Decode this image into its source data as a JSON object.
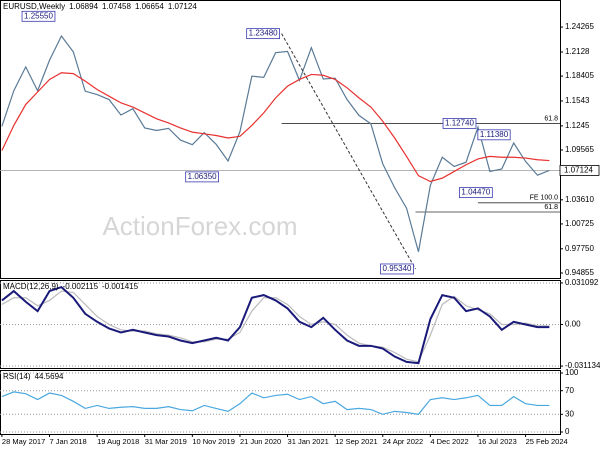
{
  "chart_data": [
    {
      "type": "line",
      "title": "EURUSD,Weekly",
      "ohlc": [
        1.06894,
        1.07458,
        1.06654,
        1.07124
      ],
      "watermark": "ActionForex.com",
      "x": [
        "2017-05-28",
        "2017-07-23",
        "2017-09-17",
        "2017-11-12",
        "2018-01-07",
        "2018-03-04",
        "2018-04-29",
        "2018-06-24",
        "2018-08-19",
        "2018-10-14",
        "2018-12-09",
        "2019-02-03",
        "2019-03-31",
        "2019-05-26",
        "2019-07-21",
        "2019-09-15",
        "2019-11-10",
        "2020-01-05",
        "2020-03-01",
        "2020-04-26",
        "2020-06-21",
        "2020-08-16",
        "2020-10-11",
        "2020-12-06",
        "2021-01-31",
        "2021-03-28",
        "2021-05-23",
        "2021-07-18",
        "2021-09-12",
        "2021-11-07",
        "2022-01-02",
        "2022-02-27",
        "2022-04-24",
        "2022-06-19",
        "2022-08-14",
        "2022-10-09",
        "2022-12-04",
        "2023-01-29",
        "2023-03-26",
        "2023-05-21",
        "2023-07-16",
        "2023-09-10",
        "2023-11-05",
        "2023-12-31",
        "2024-02-25",
        "2024-04-21",
        "2024-06-16"
      ],
      "series": [
        {
          "color": "#5a7a96",
          "values": [
            1.124,
            1.1665,
            1.195,
            1.1665,
            1.203,
            1.232,
            1.213,
            1.166,
            1.162,
            1.156,
            1.1375,
            1.145,
            1.122,
            1.119,
            1.1215,
            1.1075,
            1.102,
            1.1165,
            1.1025,
            1.0825,
            1.1175,
            1.184,
            1.1825,
            1.212,
            1.2135,
            1.179,
            1.218,
            1.1805,
            1.1815,
            1.156,
            1.137,
            1.127,
            1.079,
            1.0505,
            1.026,
            0.974,
            1.0535,
            1.087,
            1.076,
            1.081,
            1.123,
            1.07,
            1.073,
            1.104,
            1.082,
            1.0655,
            1.0712
          ]
        },
        {
          "color": "#e8312f",
          "values": [
            1.095,
            1.125,
            1.15,
            1.165,
            1.18,
            1.188,
            1.187,
            1.178,
            1.168,
            1.16,
            1.152,
            1.147,
            1.14,
            1.133,
            1.128,
            1.122,
            1.117,
            1.115,
            1.113,
            1.11,
            1.112,
            1.125,
            1.14,
            1.158,
            1.172,
            1.18,
            1.186,
            1.185,
            1.18,
            1.17,
            1.158,
            1.147,
            1.13,
            1.11,
            1.088,
            1.065,
            1.058,
            1.062,
            1.07,
            1.078,
            1.085,
            1.088,
            1.087,
            1.087,
            1.086,
            1.084,
            1.083
          ]
        }
      ],
      "xlim": [
        "2017-05-19",
        "2024-08-05"
      ],
      "ylim": [
        0.9426,
        1.275
      ],
      "yticks": [
        1.24265,
        1.2128,
        1.18405,
        1.1543,
        1.1245,
        1.09565,
        {
          "value": 1.0361,
          "label": "1.03610"
        },
        1.00725,
        {
          "value": 0.9775,
          "label": "0.97750"
        },
        0.94855
      ],
      "grid": false,
      "last_price": {
        "value": 1.07124,
        "label": "1.07124"
      },
      "annotations": [
        {
          "text": "1.25550",
          "price": 1.2555,
          "x": "2018-02-11"
        },
        {
          "text": "1.06350",
          "price": 1.0635,
          "x": "2020-03-22"
        },
        {
          "text": "1.23480",
          "price": 1.2348,
          "x": "2021-01-03"
        },
        {
          "text": "0.95340",
          "price": 0.9534,
          "x": "2022-09-25"
        },
        {
          "text": "1.12740",
          "price": 1.1274,
          "x": "2023-07-16"
        },
        {
          "text": "1.04470",
          "price": 1.0447,
          "x": "2023-10-01"
        },
        {
          "text": "1.11380",
          "price": 1.1138,
          "x": "2023-12-24"
        }
      ],
      "levels": [
        {
          "text": "61.8",
          "price": 1.1274,
          "from": "2021-01-03"
        },
        {
          "text": "FE 100.0",
          "price": 1.0325,
          "from": "2023-07-16"
        },
        {
          "text": "61.8",
          "price": 1.0215,
          "from": "2022-09-25"
        }
      ]
    },
    {
      "type": "line",
      "title": "MACD(12,26,9)",
      "ohlc": [
        -0.002115,
        -0.001415
      ],
      "x": [
        "2017-05-28",
        "2017-07-23",
        "2017-09-17",
        "2017-11-12",
        "2018-01-07",
        "2018-03-04",
        "2018-04-29",
        "2018-06-24",
        "2018-08-19",
        "2018-10-14",
        "2018-12-09",
        "2019-02-03",
        "2019-03-31",
        "2019-05-26",
        "2019-07-21",
        "2019-09-15",
        "2019-11-10",
        "2020-01-05",
        "2020-03-01",
        "2020-04-26",
        "2020-06-21",
        "2020-08-16",
        "2020-10-11",
        "2020-12-06",
        "2021-01-31",
        "2021-03-28",
        "2021-05-23",
        "2021-07-18",
        "2021-09-12",
        "2021-11-07",
        "2022-01-02",
        "2022-02-27",
        "2022-04-24",
        "2022-06-19",
        "2022-08-14",
        "2022-10-09",
        "2022-12-04",
        "2023-01-29",
        "2023-03-26",
        "2023-05-21",
        "2023-07-16",
        "2023-09-10",
        "2023-11-05",
        "2023-12-31",
        "2024-02-25",
        "2024-04-21",
        "2024-06-16"
      ],
      "series": [
        {
          "color": "#bbbbbb",
          "values": [
            0.015,
            0.02,
            0.02,
            0.014,
            0.018,
            0.025,
            0.024,
            0.015,
            0.006,
            0,
            -0.004,
            -0.005,
            -0.005,
            -0.007,
            -0.008,
            -0.01,
            -0.013,
            -0.013,
            -0.011,
            -0.011,
            -0.006,
            0.01,
            0.02,
            0.02,
            0.015,
            0.006,
            0,
            0.002,
            0,
            -0.008,
            -0.014,
            -0.016,
            -0.017,
            -0.021,
            -0.026,
            -0.028,
            -0.008,
            0.015,
            0.021,
            0.014,
            0.011,
            0.008,
            0,
            0,
            0.001,
            -0.001,
            -0.001
          ]
        },
        {
          "color": "#1a1a7a",
          "values": [
            0.018,
            0.025,
            0.017,
            0.01,
            0.025,
            0.028,
            0.02,
            0.008,
            0.002,
            -0.003,
            -0.006,
            -0.004,
            -0.006,
            -0.008,
            -0.009,
            -0.012,
            -0.014,
            -0.012,
            -0.01,
            -0.012,
            -0.002,
            0.02,
            0.022,
            0.018,
            0.012,
            0.002,
            -0.002,
            0.005,
            -0.004,
            -0.012,
            -0.016,
            -0.016,
            -0.018,
            -0.024,
            -0.028,
            -0.029,
            0.004,
            0.022,
            0.02,
            0.01,
            0.012,
            0.006,
            -0.004,
            0.002,
            0,
            -0.002,
            -0.002
          ]
        }
      ],
      "xlim": [
        "2017-05-19",
        "2024-08-05"
      ],
      "ylim": [
        -0.0326,
        0.0333
      ],
      "yticks": [
        0.031092,
        {
          "value": 0,
          "label": "0.00"
        },
        -0.031134
      ],
      "grid": true
    },
    {
      "type": "line",
      "title": "RSI(14)",
      "ohlc": [
        44.5694
      ],
      "x": [
        "2017-05-28",
        "2017-07-23",
        "2017-09-17",
        "2017-11-12",
        "2018-01-07",
        "2018-03-04",
        "2018-04-29",
        "2018-06-24",
        "2018-08-19",
        "2018-10-14",
        "2018-12-09",
        "2019-02-03",
        "2019-03-31",
        "2019-05-26",
        "2019-07-21",
        "2019-09-15",
        "2019-11-10",
        "2020-01-05",
        "2020-03-01",
        "2020-04-26",
        "2020-06-21",
        "2020-08-16",
        "2020-10-11",
        "2020-12-06",
        "2021-01-31",
        "2021-03-28",
        "2021-05-23",
        "2021-07-18",
        "2021-09-12",
        "2021-11-07",
        "2022-01-02",
        "2022-02-27",
        "2022-04-24",
        "2022-06-19",
        "2022-08-14",
        "2022-10-09",
        "2022-12-04",
        "2023-01-29",
        "2023-03-26",
        "2023-05-21",
        "2023-07-16",
        "2023-09-10",
        "2023-11-05",
        "2023-12-31",
        "2024-02-25",
        "2024-04-21",
        "2024-06-16"
      ],
      "series": [
        {
          "color": "#4aa8e0",
          "values": [
            60,
            68,
            65,
            55,
            66,
            62,
            52,
            40,
            45,
            40,
            42,
            43,
            40,
            40,
            43,
            38,
            36,
            45,
            40,
            35,
            48,
            66,
            58,
            62,
            64,
            55,
            60,
            48,
            52,
            38,
            40,
            38,
            30,
            35,
            33,
            30,
            55,
            58,
            55,
            58,
            62,
            45,
            45,
            60,
            48,
            45,
            45
          ]
        }
      ],
      "xlim": [
        "2017-05-19",
        "2024-08-05"
      ],
      "ylim": [
        -3.4,
        105.1
      ],
      "yticks": [
        100,
        70,
        30,
        0
      ],
      "grid": true,
      "xticks": [
        {
          "value": "2017-05-28",
          "label": "28 May 2017"
        },
        {
          "value": "2018-01-07",
          "label": "7 Jan 2018"
        },
        {
          "value": "2018-08-19",
          "label": "19 Aug 2018"
        },
        {
          "value": "2019-03-31",
          "label": "31 Mar 2019"
        },
        {
          "value": "2019-11-10",
          "label": "10 Nov 2019"
        },
        {
          "value": "2020-06-21",
          "label": "21 Jun 2020"
        },
        {
          "value": "2021-01-31",
          "label": "31 Jan 2021"
        },
        {
          "value": "2021-09-12",
          "label": "12 Sep 2021"
        },
        {
          "value": "2022-04-24",
          "label": "24 Apr 2022"
        },
        {
          "value": "2022-12-04",
          "label": "4 Dec 2022"
        },
        {
          "value": "2023-07-16",
          "label": "16 Jul 2023"
        },
        {
          "value": "2024-02-25",
          "label": "25 Feb 2024"
        }
      ]
    }
  ]
}
